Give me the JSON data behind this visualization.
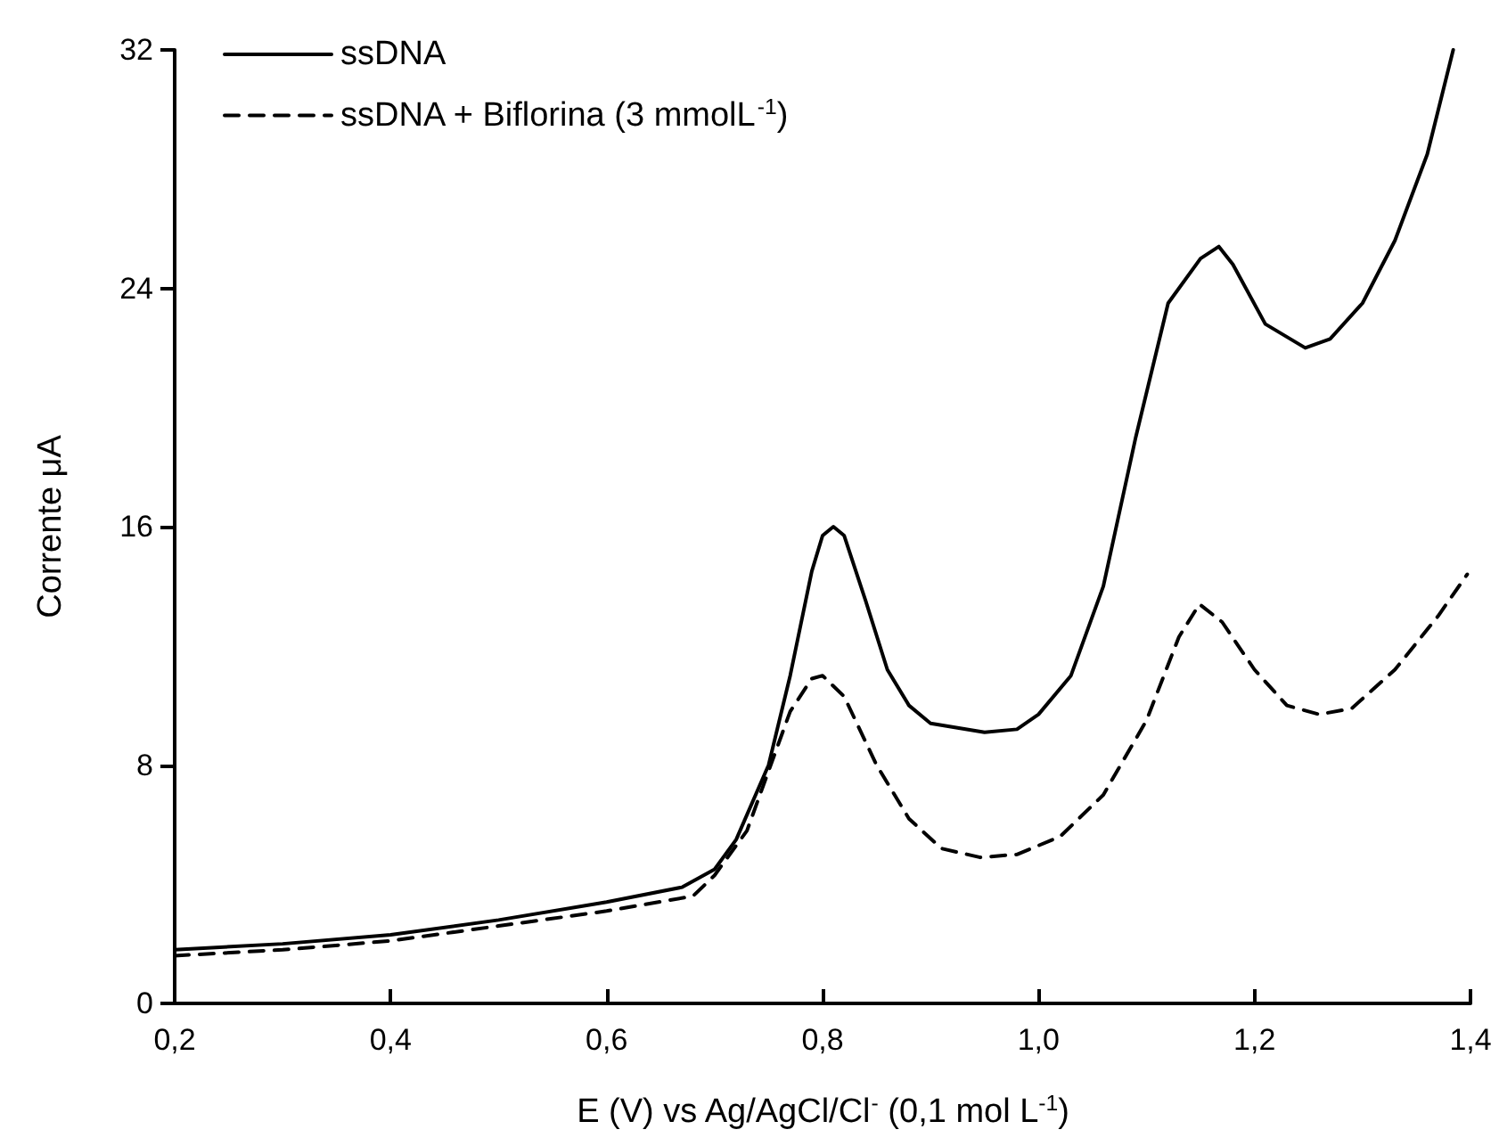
{
  "chart_data": {
    "type": "line",
    "xlabel": "E (V) vs Ag/AgCl/Cl$^{-}$ (0,1 mol L$^{-1}$)",
    "ylabel": "Corrente μA",
    "xlim": [
      0.2,
      1.4
    ],
    "xticks": [
      {
        "value": 0.2,
        "label": "0,2"
      },
      {
        "value": 0.4,
        "label": "0,4"
      },
      {
        "value": 0.6,
        "label": "0,6"
      },
      {
        "value": 0.8,
        "label": "0,8"
      },
      {
        "value": 1.0,
        "label": "1,0"
      },
      {
        "value": 1.2,
        "label": "1,2"
      },
      {
        "value": 1.4,
        "label": "1,4"
      }
    ],
    "ylim": [
      0,
      32
    ],
    "yticks": [
      0,
      8,
      16,
      24,
      32
    ],
    "grid": false,
    "legend": "top left",
    "marker": "none",
    "series": [
      {
        "name": "ssDNA",
        "color": "#000000",
        "line_style": "solid",
        "x": [
          0.2,
          0.3,
          0.4,
          0.5,
          0.6,
          0.67,
          0.7,
          0.72,
          0.75,
          0.77,
          0.79,
          0.8,
          0.81,
          0.82,
          0.84,
          0.86,
          0.88,
          0.9,
          0.95,
          0.98,
          1.0,
          1.03,
          1.06,
          1.09,
          1.12,
          1.15,
          1.167,
          1.18,
          1.21,
          1.247,
          1.27,
          1.3,
          1.33,
          1.36,
          1.384
        ],
        "values": [
          1.8,
          2.0,
          2.3,
          2.8,
          3.4,
          3.9,
          4.5,
          5.5,
          8.0,
          11.0,
          14.5,
          15.7,
          16.0,
          15.7,
          13.5,
          11.2,
          10.0,
          9.4,
          9.1,
          9.2,
          9.7,
          11.0,
          14.0,
          19.0,
          23.5,
          25.0,
          25.4,
          24.8,
          22.8,
          22.0,
          22.3,
          23.5,
          25.6,
          28.5,
          32.0
        ]
      },
      {
        "name": "ssDNA + Biflorina (3 mmolL$^{-1}$)",
        "color": "#000000",
        "line_style": "dashed",
        "x": [
          0.2,
          0.3,
          0.4,
          0.5,
          0.6,
          0.68,
          0.7,
          0.73,
          0.75,
          0.77,
          0.79,
          0.8,
          0.82,
          0.85,
          0.88,
          0.91,
          0.946,
          0.98,
          1.02,
          1.06,
          1.1,
          1.13,
          1.149,
          1.17,
          1.2,
          1.23,
          1.26,
          1.29,
          1.33,
          1.37,
          1.397
        ],
        "values": [
          1.6,
          1.8,
          2.1,
          2.6,
          3.1,
          3.6,
          4.3,
          5.8,
          7.8,
          9.8,
          10.9,
          11.0,
          10.3,
          8.0,
          6.2,
          5.2,
          4.9,
          5.0,
          5.6,
          7.0,
          9.5,
          12.3,
          13.4,
          12.8,
          11.2,
          10.0,
          9.7,
          9.9,
          11.2,
          13.0,
          14.4
        ]
      }
    ]
  }
}
